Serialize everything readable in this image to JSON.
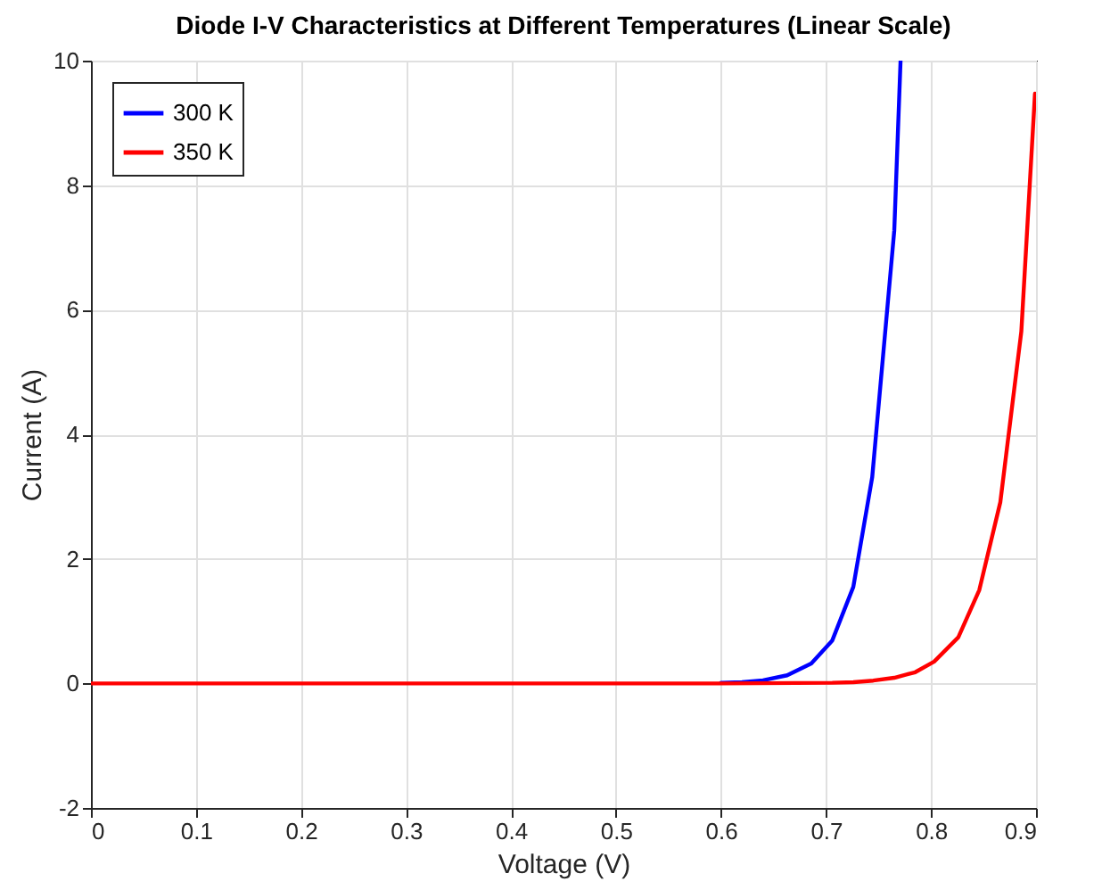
{
  "chart_data": {
    "type": "line",
    "title": "Diode I-V Characteristics at Different Temperatures (Linear Scale)",
    "xlabel": "Voltage (V)",
    "ylabel": "Current (A)",
    "series": [
      {
        "name": "300 K",
        "color": "#0000ff",
        "x": [
          0.6,
          0.62,
          0.64,
          0.663,
          0.686,
          0.706,
          0.726,
          0.744,
          0.765,
          0.771
        ],
        "values": [
          0.01,
          0.02,
          0.05,
          0.13,
          0.32,
          0.69,
          1.55,
          3.31,
          7.27,
          10
        ]
      },
      {
        "name": "350 K",
        "color": "#ff0000",
        "x": [
          0,
          0.1,
          0.2,
          0.3,
          0.4,
          0.5,
          0.6,
          0.706,
          0.726,
          0.745,
          0.765,
          0.785,
          0.803,
          0.826,
          0.846,
          0.866,
          0.886,
          0.899
        ],
        "values": [
          0,
          0,
          0,
          0,
          0,
          0,
          0,
          0.01,
          0.02,
          0.045,
          0.09,
          0.18,
          0.35,
          0.74,
          1.5,
          2.91,
          5.65,
          9.47
        ]
      }
    ],
    "xlim": [
      0,
      0.9
    ],
    "xticks": [
      0,
      0.1,
      0.2,
      0.3,
      0.4,
      0.5,
      0.6,
      0.7,
      0.8,
      0.9
    ],
    "ylim": [
      -2,
      10
    ],
    "yticks": [
      -2,
      0,
      2,
      4,
      6,
      8,
      10
    ],
    "grid": true,
    "legend": "top left",
    "line_style": "solid",
    "marker": "none"
  }
}
